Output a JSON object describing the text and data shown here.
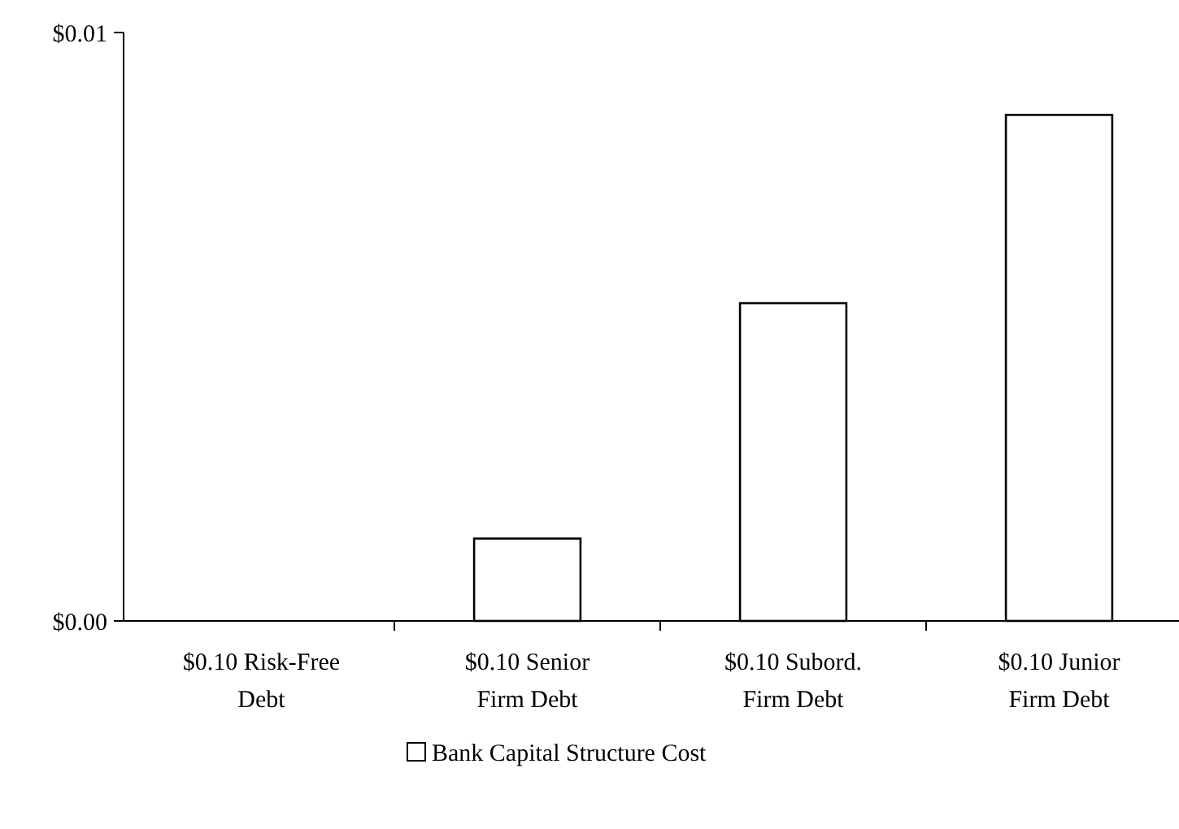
{
  "chart_data": {
    "type": "bar",
    "categories": [
      "$0.10 Risk-Free Debt",
      "$0.10 Senior Firm Debt",
      "$0.10 Subord. Firm Debt",
      "$0.10 Junior Firm Debt"
    ],
    "series": [
      {
        "name": "Bank Capital Structure Cost",
        "color": "#ffffff",
        "values": [
          0,
          0.0014,
          0.0054,
          0.0086
        ]
      }
    ],
    "ylim": [
      0,
      0.01
    ],
    "yticks": [
      {
        "value": 0,
        "label": "$0.00"
      },
      {
        "value": 0.01,
        "label": "$0.01"
      }
    ],
    "grid": false,
    "legend": "bottom"
  }
}
